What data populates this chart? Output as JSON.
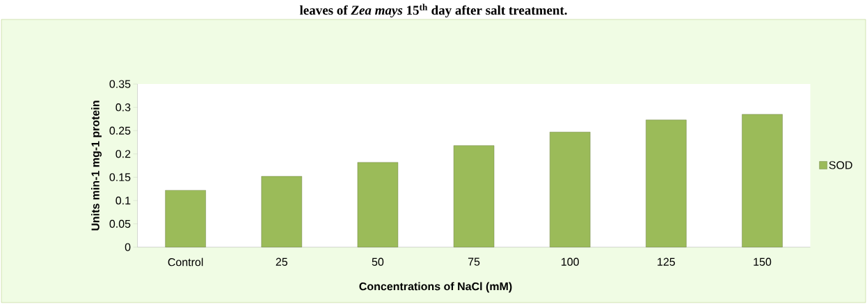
{
  "chart_data": {
    "type": "bar",
    "title": "leaves of *Zea mays* 15$^{th}$ day after salt treatment.",
    "xlabel": "Concentrations of NaCl (mM)",
    "ylabel": "Units min-1 mg-1 protein",
    "categories": [
      "Control",
      "25",
      "50",
      "75",
      "100",
      "125",
      "150"
    ],
    "series": [
      {
        "name": "SOD",
        "color": "#9bbb59",
        "values": [
          0.122,
          0.152,
          0.182,
          0.218,
          0.247,
          0.273,
          0.285
        ]
      }
    ],
    "ylim": [
      0,
      0.35
    ],
    "yticks": [
      0,
      0.05,
      0.1,
      0.15,
      0.2,
      0.25,
      0.3,
      0.35
    ],
    "grid": false,
    "legend": "right"
  }
}
